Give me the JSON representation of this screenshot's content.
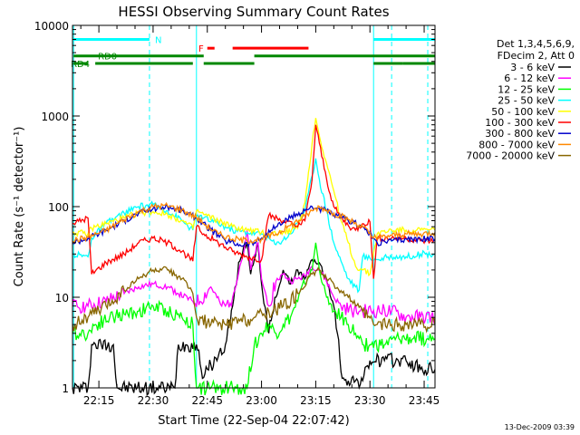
{
  "chart_data": {
    "type": "line",
    "title": "HESSI Observing Summary Count Rates",
    "xlabel": "Start Time (22-Sep-04 22:07:42)",
    "ylabel": "Count Rate (s⁻¹ detector⁻¹)",
    "x_unit": "minutes since 22:00",
    "xlim": [
      7.7,
      108
    ],
    "ylim": [
      1,
      10000
    ],
    "yscale": "log",
    "xticks": [
      {
        "value": 15,
        "label": "22:15"
      },
      {
        "value": 30,
        "label": "22:30"
      },
      {
        "value": 45,
        "label": "22:45"
      },
      {
        "value": 60,
        "label": "23:00"
      },
      {
        "value": 75,
        "label": "23:15"
      },
      {
        "value": 90,
        "label": "23:30"
      },
      {
        "value": 105,
        "label": "23:45"
      }
    ],
    "yticks": [
      {
        "value": 1,
        "label": "1"
      },
      {
        "value": 10,
        "label": "10"
      },
      {
        "value": 100,
        "label": "100"
      },
      {
        "value": 1000,
        "label": "1000"
      },
      {
        "value": 10000,
        "label": "10000"
      }
    ],
    "legend": {
      "header": [
        "Det 1,3,4,5,6,9,",
        "FDecim 2, Att 0"
      ],
      "placement": "right"
    },
    "timestamp": "13-Dec-2009 03:39",
    "series": [
      {
        "name": "3 - 6 keV",
        "color": "#000000",
        "x": [
          7.7,
          12,
          13,
          19,
          20,
          36,
          37,
          42,
          44,
          46,
          48,
          50,
          52,
          54,
          55,
          56,
          57,
          59,
          60,
          62,
          64,
          66,
          68,
          70,
          72,
          74,
          76,
          78,
          80,
          81,
          82,
          84,
          86,
          88,
          90,
          94,
          100,
          104,
          108
        ],
        "y": [
          1,
          1,
          3,
          3,
          1,
          1,
          3,
          3,
          1.3,
          1.8,
          2.2,
          3,
          8,
          25,
          35,
          40,
          18,
          40,
          14,
          4,
          10,
          20,
          14,
          20,
          16,
          26,
          24,
          15,
          8,
          4,
          1.5,
          1.2,
          1.2,
          1.2,
          2,
          2,
          2,
          1.6,
          1.6
        ]
      },
      {
        "name": "6 - 12 keV",
        "color": "#ff00ff",
        "x": [
          7.7,
          12,
          17,
          22,
          26,
          30,
          34,
          37,
          41,
          43,
          46,
          49,
          50,
          52,
          54,
          55,
          56,
          57,
          59,
          60,
          62,
          64,
          66,
          68,
          70,
          72,
          74,
          76,
          78,
          80,
          82,
          85,
          87,
          88,
          92,
          96,
          100,
          104,
          108
        ],
        "y": [
          8,
          8,
          9,
          11,
          13,
          14,
          13,
          11,
          9,
          9,
          13,
          8,
          8,
          10,
          22,
          30,
          55,
          20,
          40,
          16,
          8,
          15,
          18,
          15,
          16,
          17,
          22,
          20,
          15,
          10,
          8,
          7,
          7,
          7,
          7,
          7,
          6,
          6,
          6
        ]
      },
      {
        "name": "12 - 25 keV",
        "color": "#00ff00",
        "x": [
          7.7,
          12,
          14,
          18,
          22,
          26,
          30,
          34,
          38,
          41,
          42,
          46,
          50,
          52,
          54,
          56,
          58,
          60,
          62,
          64,
          66,
          68,
          70,
          72,
          74,
          75,
          76,
          78,
          80,
          82,
          84,
          86,
          87,
          88,
          90,
          94,
          98,
          102,
          106,
          108
        ],
        "y": [
          4,
          4,
          5,
          6,
          6.5,
          7,
          8,
          7,
          6,
          5,
          1,
          1,
          1,
          1,
          1,
          1,
          3,
          4,
          5,
          4,
          5,
          6,
          9,
          14,
          20,
          40,
          20,
          10,
          7,
          6,
          5,
          4,
          3.5,
          3,
          3,
          3,
          3.5,
          3.5,
          3.5,
          3.5
        ]
      },
      {
        "name": "25 - 50 keV",
        "color": "#00ffff",
        "x": [
          7.7,
          12,
          13,
          17,
          22,
          26,
          30,
          34,
          38,
          41,
          42,
          44,
          48,
          52,
          56,
          60,
          62,
          64,
          68,
          72,
          74,
          75,
          76,
          78,
          80,
          82,
          84,
          86,
          87,
          88,
          92,
          96,
          100,
          104,
          108
        ],
        "y": [
          30,
          28,
          45,
          65,
          85,
          100,
          105,
          90,
          70,
          55,
          80,
          75,
          65,
          55,
          52,
          50,
          45,
          38,
          50,
          90,
          220,
          340,
          200,
          90,
          40,
          25,
          16,
          13,
          12,
          28,
          26,
          28,
          28,
          30,
          30
        ]
      },
      {
        "name": "50 - 100 keV",
        "color": "#ffff00",
        "x": [
          7.7,
          12,
          13,
          17,
          22,
          26,
          30,
          34,
          38,
          41,
          42,
          44,
          48,
          52,
          56,
          60,
          62,
          66,
          70,
          72,
          74,
          75,
          76,
          78,
          80,
          82,
          84,
          86,
          88,
          90,
          92,
          96,
          100,
          104,
          108
        ],
        "y": [
          52,
          50,
          58,
          65,
          75,
          85,
          88,
          82,
          70,
          58,
          90,
          82,
          70,
          60,
          55,
          52,
          50,
          52,
          58,
          110,
          500,
          950,
          600,
          300,
          150,
          70,
          40,
          22,
          20,
          18,
          50,
          55,
          55,
          55,
          55
        ]
      },
      {
        "name": "100 - 300 keV",
        "color": "#ff0000",
        "x": [
          7.7,
          12,
          13,
          17,
          22,
          26,
          30,
          34,
          38,
          41,
          42,
          44,
          48,
          52,
          56,
          60,
          62,
          66,
          70,
          72,
          74,
          75,
          76,
          78,
          80,
          82,
          84,
          86,
          88,
          90,
          91,
          92,
          96,
          100,
          104,
          108
        ],
        "y": [
          65,
          75,
          18,
          24,
          30,
          40,
          45,
          40,
          32,
          25,
          60,
          50,
          40,
          32,
          28,
          26,
          80,
          70,
          60,
          70,
          200,
          800,
          500,
          200,
          100,
          75,
          62,
          55,
          65,
          68,
          16,
          45,
          45,
          45,
          42,
          42
        ]
      },
      {
        "name": "300 - 800 keV",
        "color": "#0000cc",
        "x": [
          7.7,
          12,
          17,
          22,
          26,
          30,
          34,
          38,
          42,
          46,
          50,
          54,
          58,
          60,
          64,
          68,
          72,
          74,
          76,
          78,
          80,
          84,
          88,
          91,
          92,
          96,
          100,
          104,
          108
        ],
        "y": [
          40,
          45,
          55,
          70,
          85,
          95,
          100,
          90,
          75,
          55,
          42,
          38,
          40,
          45,
          60,
          75,
          90,
          100,
          95,
          90,
          80,
          70,
          60,
          45,
          40,
          42,
          44,
          44,
          44
        ]
      },
      {
        "name": "800 - 7000 keV",
        "color": "#ff8800",
        "x": [
          7.7,
          12,
          17,
          22,
          26,
          30,
          34,
          38,
          42,
          44,
          48,
          52,
          56,
          60,
          64,
          68,
          72,
          74,
          76,
          78,
          80,
          84,
          88,
          91,
          92,
          96,
          100,
          104,
          108
        ],
        "y": [
          42,
          46,
          55,
          72,
          88,
          100,
          102,
          92,
          76,
          65,
          50,
          44,
          42,
          44,
          50,
          62,
          78,
          90,
          100,
          92,
          85,
          72,
          60,
          45,
          45,
          48,
          50,
          50,
          52
        ]
      },
      {
        "name": "7000 - 20000 keV",
        "color": "#886600",
        "x": [
          7.7,
          12,
          17,
          22,
          26,
          30,
          34,
          38,
          41,
          42,
          46,
          50,
          54,
          58,
          62,
          66,
          70,
          74,
          76,
          78,
          80,
          84,
          88,
          91,
          92,
          96,
          100,
          104,
          108
        ],
        "y": [
          5,
          6,
          8,
          12,
          16,
          20,
          20,
          16,
          11,
          6,
          5,
          5,
          5.5,
          6,
          7,
          8,
          11,
          18,
          20,
          16,
          14,
          10,
          7,
          5,
          5,
          5,
          5,
          5,
          5
        ]
      }
    ],
    "annotations": [
      {
        "label": "N",
        "color": "#00ffff",
        "segments": [
          [
            8,
            29
          ],
          [
            91,
            108
          ]
        ],
        "level": 7000
      },
      {
        "label": "F",
        "color": "#ff0000",
        "segments": [
          [
            45,
            47
          ],
          [
            52,
            73
          ]
        ],
        "level": 5600
      },
      {
        "label": "RD0",
        "color": "#008800",
        "segments": [
          [
            8,
            44
          ],
          [
            58,
            108
          ]
        ],
        "level": 4600,
        "label_at": 14
      },
      {
        "label": "RD4",
        "color": "#008800",
        "segments": [
          [
            8,
            12
          ],
          [
            14,
            41
          ],
          [
            44,
            58
          ],
          [
            91,
            99
          ],
          [
            99,
            108
          ]
        ],
        "level": 3800
      }
    ],
    "vlines": [
      {
        "x": 8,
        "color": "#00ffff",
        "style": "solid"
      },
      {
        "x": 29,
        "color": "#00ffff",
        "style": "dashed"
      },
      {
        "x": 42,
        "color": "#00ffff",
        "style": "solid"
      },
      {
        "x": 91,
        "color": "#00ffff",
        "style": "solid"
      },
      {
        "x": 96,
        "color": "#00ffff",
        "style": "dashed"
      },
      {
        "x": 106,
        "color": "#00ffff",
        "style": "dashed"
      }
    ]
  }
}
